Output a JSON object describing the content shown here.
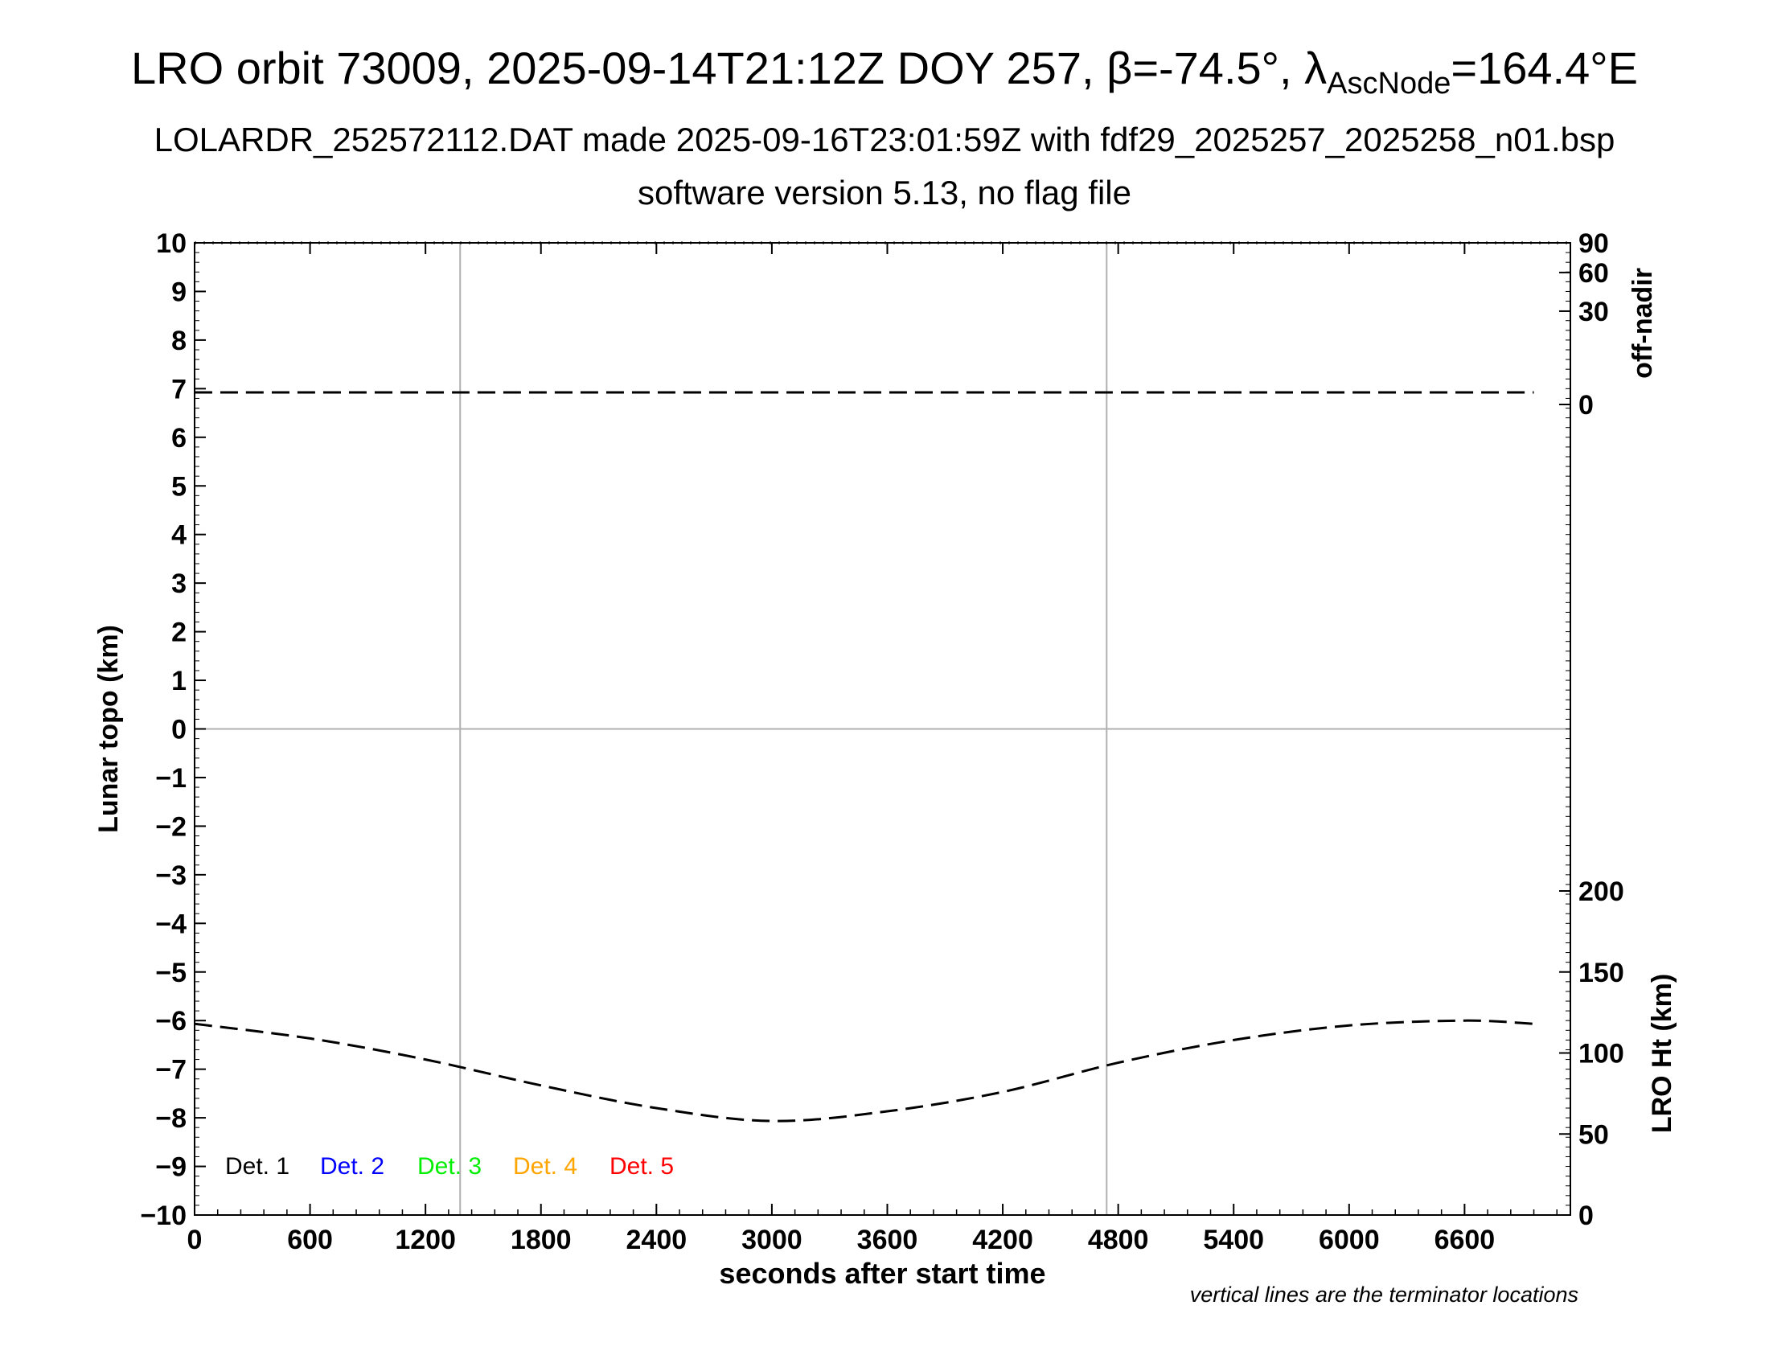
{
  "title": {
    "prefix": "LRO orbit 73009, 2025-09-14T21:12Z DOY 257, ",
    "beta_symbol": "β",
    "beta_value": "=-74.5°, ",
    "lambda_symbol": "λ",
    "lambda_sub": "AscNode",
    "lambda_value": "=164.4°E"
  },
  "subtitle1": "LOLARDR_252572112.DAT made 2025-09-16T23:01:59Z with fdf29_2025257_2025258_n01.bsp",
  "subtitle2": "software version 5.13, no flag file",
  "footnote": "vertical lines are the terminator locations",
  "chart_data": {
    "type": "line",
    "xlabel": "seconds after start time",
    "ylabel_left": "Lunar topo (km)",
    "ylabel_right_top": "off-nadir",
    "ylabel_right_bottom": "LRO Ht (km)",
    "xlim": [
      0,
      7150
    ],
    "ylim_left": [
      -10,
      10
    ],
    "x_ticks": [
      0,
      600,
      1200,
      1800,
      2400,
      3000,
      3600,
      4200,
      4800,
      5400,
      6000,
      6600
    ],
    "y_ticks_left": [
      -10,
      -9,
      -8,
      -7,
      -6,
      -5,
      -4,
      -3,
      -2,
      -1,
      0,
      1,
      2,
      3,
      4,
      5,
      6,
      7,
      8,
      9,
      10
    ],
    "right_top_axis": {
      "label": "off-nadir",
      "range": [
        0,
        90
      ],
      "ticks": [
        0,
        30,
        60,
        90
      ],
      "scale": "sqrt"
    },
    "right_bottom_axis": {
      "label": "LRO Ht (km)",
      "range": [
        0,
        200
      ],
      "ticks": [
        0,
        50,
        100,
        150,
        200
      ]
    },
    "terminators_x": [
      1380,
      4740
    ],
    "zero_line_y": 0,
    "series": [
      {
        "name": "off-nadir",
        "axis": "right_top",
        "style": "dashed",
        "color": "#000000",
        "x": [
          0,
          1380,
          3000,
          4740,
          6960
        ],
        "y": [
          0.5,
          0.5,
          0.5,
          0.5,
          0.5
        ]
      },
      {
        "name": "LRO Ht",
        "axis": "right_bottom",
        "style": "dashed",
        "color": "#000000",
        "x": [
          0,
          600,
          1200,
          1800,
          2400,
          3000,
          3600,
          4200,
          4800,
          5400,
          6000,
          6600,
          6960
        ],
        "y": [
          118,
          109,
          96,
          80,
          66,
          58,
          64,
          76,
          94,
          108,
          117,
          120,
          118
        ]
      }
    ],
    "legend": {
      "placement": "bottom-left",
      "entries": [
        {
          "label": "Det. 1",
          "color": "#000000"
        },
        {
          "label": "Det. 2",
          "color": "#0000ff"
        },
        {
          "label": "Det. 3",
          "color": "#00ee00"
        },
        {
          "label": "Det. 4",
          "color": "#ffa500"
        },
        {
          "label": "Det. 5",
          "color": "#ff0000"
        }
      ]
    },
    "grid": false
  }
}
